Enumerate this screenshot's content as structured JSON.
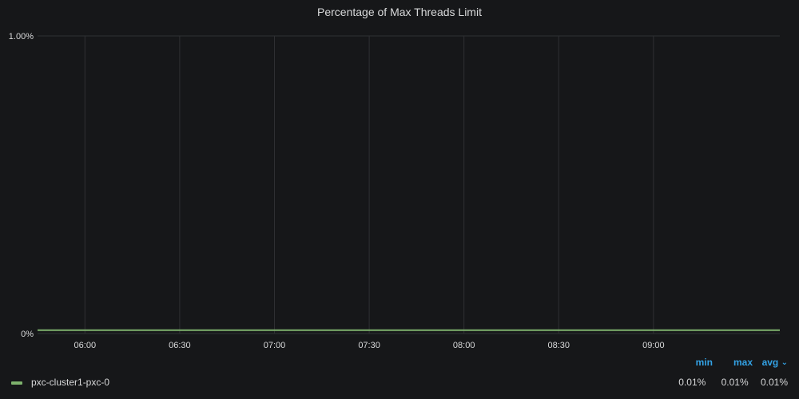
{
  "panel": {
    "title": "Percentage of Max Threads Limit"
  },
  "colors": {
    "background": "#161719",
    "grid": "#2f3033",
    "text": "#d8d9da",
    "series": "#7eb26d",
    "legend_header": "#33a2e5"
  },
  "chart_data": {
    "type": "line",
    "title": "Percentage of Max Threads Limit",
    "xlabel": "",
    "ylabel": "",
    "x_ticks": [
      "06:00",
      "06:30",
      "07:00",
      "07:30",
      "08:00",
      "08:30",
      "09:00"
    ],
    "y_ticks": [
      "0%",
      "1.00%"
    ],
    "xlim": [
      "05:45",
      "09:40"
    ],
    "ylim": [
      0,
      1
    ],
    "grid": true,
    "legend_position": "bottom",
    "series": [
      {
        "name": "pxc-cluster1-pxc-0",
        "color": "#7eb26d",
        "x": [
          "05:45",
          "06:00",
          "06:30",
          "07:00",
          "07:30",
          "08:00",
          "08:30",
          "09:00",
          "09:40"
        ],
        "values": [
          0.01,
          0.01,
          0.01,
          0.01,
          0.01,
          0.01,
          0.01,
          0.01,
          0.01
        ]
      }
    ]
  },
  "legend": {
    "headers": {
      "min": "min",
      "max": "max",
      "avg": "avg"
    },
    "sort_icon": "chevron-down-icon",
    "rows": [
      {
        "name": "pxc-cluster1-pxc-0",
        "min": "0.01%",
        "max": "0.01%",
        "avg": "0.01%"
      }
    ]
  }
}
